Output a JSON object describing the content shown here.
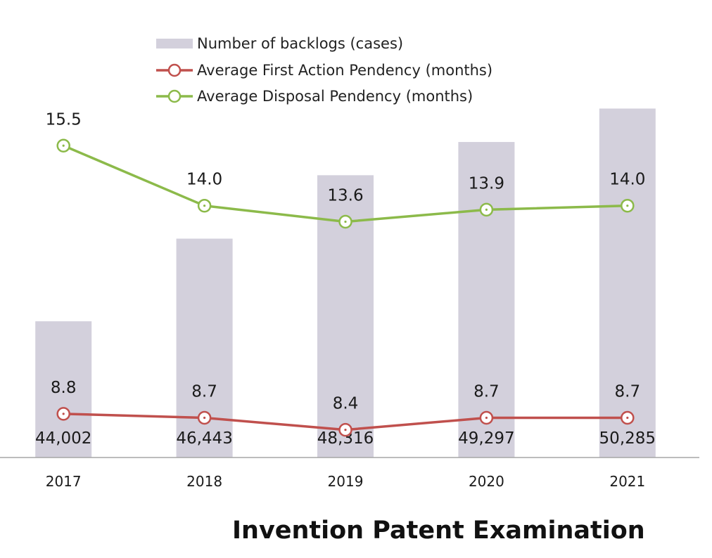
{
  "caption": "Invention Patent Examination",
  "chart_data": {
    "type": "bar+line",
    "categories": [
      "2017",
      "2018",
      "2019",
      "2020",
      "2021"
    ],
    "bars": {
      "name": "Number of backlogs (cases)",
      "values": [
        44002,
        46443,
        48316,
        49297,
        50285
      ],
      "labels": [
        "44,002",
        "46,443",
        "48,316",
        "49,297",
        "50,285"
      ],
      "color": "#d3d0dc",
      "ylim": [
        40000,
        51000
      ]
    },
    "series": [
      {
        "name": "Average First Action Pendency (months)",
        "values": [
          8.8,
          8.7,
          8.4,
          8.7,
          8.7
        ],
        "labels": [
          "8.8",
          "8.7",
          "8.4",
          "8.7",
          "8.7"
        ],
        "color": "#c0504d"
      },
      {
        "name": "Average Disposal Pendency (months)",
        "values": [
          15.5,
          14.0,
          13.6,
          13.9,
          14.0
        ],
        "labels": [
          "15.5",
          "14.0",
          "13.6",
          "13.9",
          "14.0"
        ],
        "color": "#8cba4a"
      }
    ],
    "line_ylim": [
      0,
      20
    ],
    "legend": "top-center"
  }
}
